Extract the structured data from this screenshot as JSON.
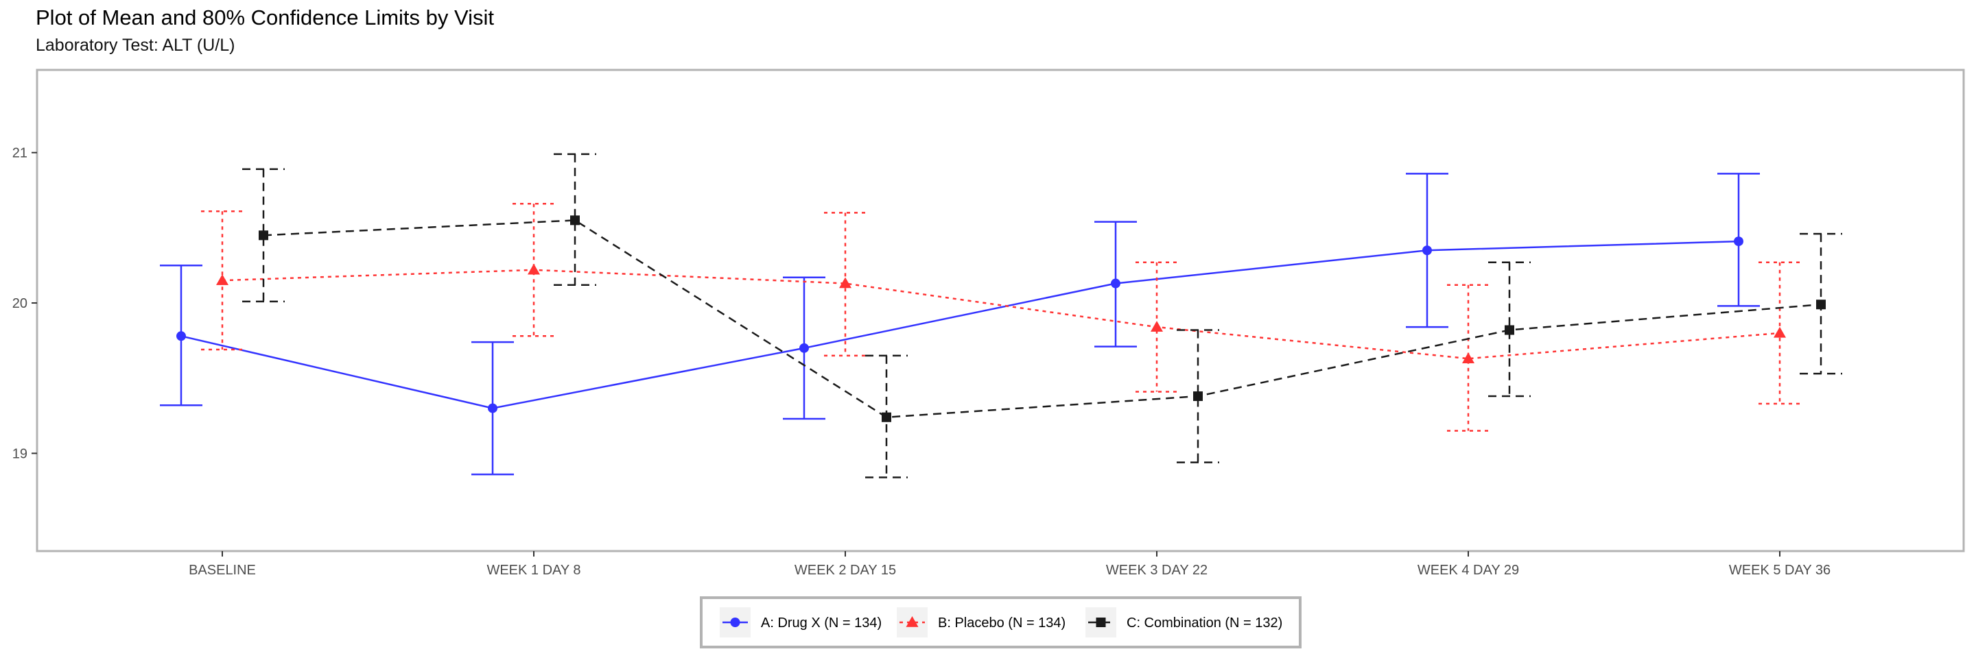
{
  "chart_data": {
    "type": "line",
    "title": "Plot of Mean and 80% Confidence Limits by Visit",
    "subtitle": "Laboratory Test: ALT (U/L)",
    "xlabel": "",
    "ylabel": "",
    "categories": [
      "BASELINE",
      "WEEK 1 DAY 8",
      "WEEK 2 DAY 15",
      "WEEK 3 DAY 22",
      "WEEK 4 DAY 29",
      "WEEK 5 DAY 36"
    ],
    "ylim": [
      18.35,
      21.55
    ],
    "yticks": [
      19,
      20,
      21
    ],
    "grid": false,
    "legend_position": "bottom",
    "series": [
      {
        "name": "A: Drug X (N = 134)",
        "color": "#3333ff",
        "marker": "circle",
        "line_style": "solid",
        "mean": [
          19.78,
          19.3,
          19.7,
          20.13,
          20.35,
          20.41
        ],
        "lower": [
          19.32,
          18.86,
          19.23,
          19.71,
          19.84,
          19.98
        ],
        "upper": [
          20.25,
          19.74,
          20.17,
          20.54,
          20.86,
          20.86
        ]
      },
      {
        "name": "B: Placebo (N = 134)",
        "color": "#ff3333",
        "marker": "triangle",
        "line_style": "dotted",
        "mean": [
          20.15,
          20.22,
          20.13,
          19.84,
          19.63,
          19.8
        ],
        "lower": [
          19.69,
          19.78,
          19.65,
          19.41,
          19.15,
          19.33
        ],
        "upper": [
          20.61,
          20.66,
          20.6,
          20.27,
          20.12,
          20.27
        ]
      },
      {
        "name": "C: Combination (N = 132)",
        "color": "#1a1a1a",
        "marker": "square",
        "line_style": "dashed",
        "mean": [
          20.45,
          20.55,
          19.24,
          19.38,
          19.82,
          19.99
        ],
        "lower": [
          20.01,
          20.12,
          18.84,
          18.94,
          19.38,
          19.53
        ],
        "upper": [
          20.89,
          20.99,
          19.65,
          19.82,
          20.27,
          20.46
        ]
      }
    ]
  }
}
